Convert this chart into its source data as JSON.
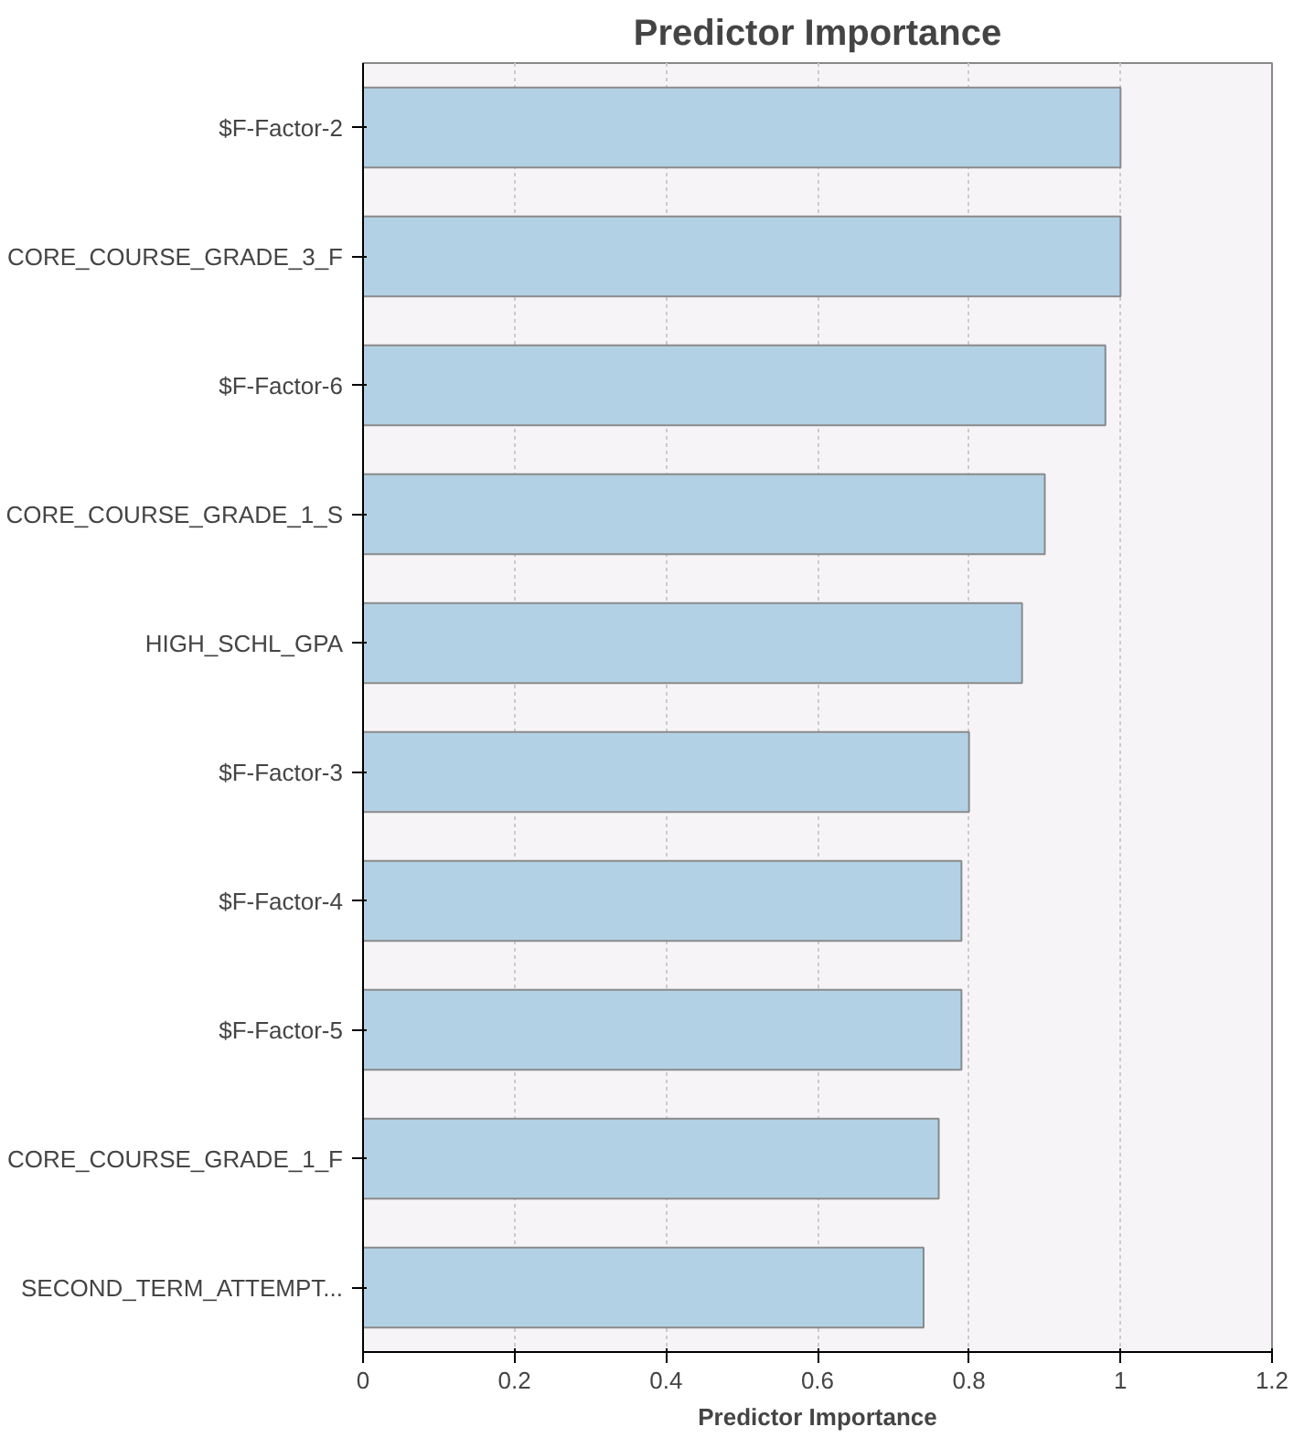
{
  "chart_data": {
    "type": "bar",
    "orientation": "horizontal",
    "title": "Predictor Importance",
    "xlabel": "Predictor Importance",
    "categories": [
      "$F-Factor-2",
      "CORE_COURSE_GRADE_3_F",
      "$F-Factor-6",
      "CORE_COURSE_GRADE_1_S",
      "HIGH_SCHL_GPA",
      "$F-Factor-3",
      "$F-Factor-4",
      "$F-Factor-5",
      "CORE_COURSE_GRADE_1_F",
      "SECOND_TERM_ATTEMPT..."
    ],
    "values": [
      1.0,
      1.0,
      0.98,
      0.9,
      0.87,
      0.8,
      0.79,
      0.79,
      0.76,
      0.74
    ],
    "color": "#b3d1e4",
    "xlim": [
      0,
      1.2
    ],
    "xticks": [
      0,
      0.2,
      0.4,
      0.6,
      0.8,
      1,
      1.2
    ],
    "grid": "x"
  }
}
